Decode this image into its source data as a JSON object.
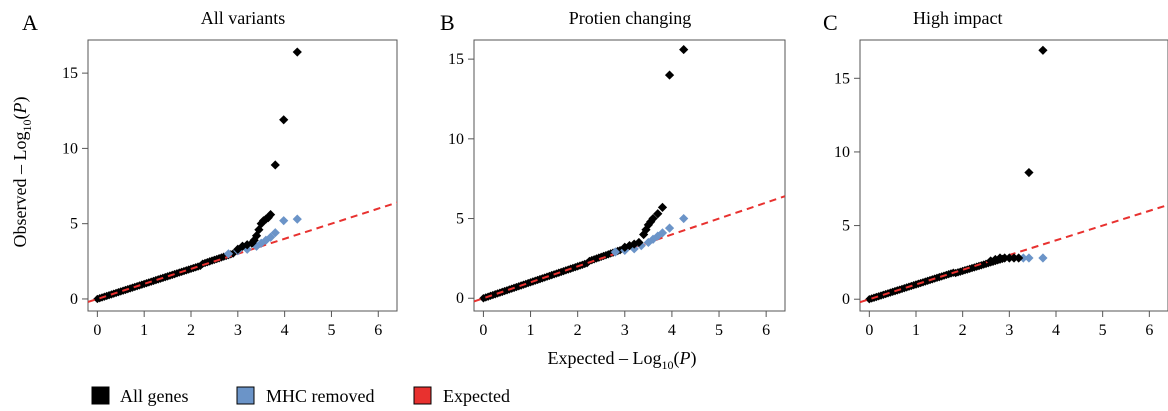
{
  "legend": {
    "items": [
      {
        "label": "All genes",
        "color": "#000000"
      },
      {
        "label": "MHC removed",
        "color": "#6b94c8"
      },
      {
        "label": "Expected",
        "color": "#e8312f"
      }
    ]
  },
  "axes": {
    "ylabel_text": "Observed – Log",
    "ylabel_sub": "10",
    "ylabel_var": "P",
    "xlabel_text": "Expected – Log",
    "xlabel_sub": "10",
    "xlabel_var": "P"
  },
  "chart_data": [
    {
      "type": "scatter",
      "panel": "A",
      "title": "All variants",
      "xlim": [
        -0.2,
        6.4
      ],
      "ylim": [
        -0.8,
        17.2
      ],
      "xticks": [
        0,
        1,
        2,
        3,
        4,
        5,
        6
      ],
      "yticks": [
        0,
        5,
        10,
        15
      ],
      "expected_line": {
        "slope": 1,
        "color": "#e8312f"
      },
      "series": [
        {
          "name": "All genes",
          "color": "#000000",
          "points": [
            [
              3.0,
              3.3
            ],
            [
              3.1,
              3.5
            ],
            [
              3.2,
              3.6
            ],
            [
              3.3,
              3.7
            ],
            [
              3.35,
              3.9
            ],
            [
              3.4,
              4.2
            ],
            [
              3.45,
              4.6
            ],
            [
              3.5,
              5.0
            ],
            [
              3.55,
              5.2
            ],
            [
              3.6,
              5.3
            ],
            [
              3.65,
              5.4
            ],
            [
              3.7,
              5.6
            ],
            [
              3.8,
              8.9
            ],
            [
              3.98,
              11.9
            ],
            [
              4.27,
              16.4
            ]
          ]
        },
        {
          "name": "MHC removed",
          "color": "#6b94c8",
          "points": [
            [
              2.8,
              3.0
            ],
            [
              3.0,
              3.2
            ],
            [
              3.2,
              3.3
            ],
            [
              3.4,
              3.5
            ],
            [
              3.5,
              3.7
            ],
            [
              3.6,
              3.9
            ],
            [
              3.7,
              4.1
            ],
            [
              3.8,
              4.4
            ],
            [
              3.98,
              5.2
            ],
            [
              4.27,
              5.3
            ]
          ]
        }
      ]
    },
    {
      "type": "scatter",
      "panel": "B",
      "title": "Protien changing",
      "xlim": [
        -0.2,
        6.4
      ],
      "ylim": [
        -0.8,
        16.2
      ],
      "xticks": [
        0,
        1,
        2,
        3,
        4,
        5,
        6
      ],
      "yticks": [
        0,
        5,
        10,
        15
      ],
      "expected_line": {
        "slope": 1,
        "color": "#e8312f"
      },
      "series": [
        {
          "name": "All genes",
          "color": "#000000",
          "points": [
            [
              3.0,
              3.2
            ],
            [
              3.1,
              3.3
            ],
            [
              3.2,
              3.4
            ],
            [
              3.3,
              3.5
            ],
            [
              3.4,
              4.0
            ],
            [
              3.45,
              4.3
            ],
            [
              3.5,
              4.6
            ],
            [
              3.55,
              4.8
            ],
            [
              3.6,
              5.0
            ],
            [
              3.7,
              5.3
            ],
            [
              3.8,
              5.7
            ],
            [
              3.95,
              14.0
            ],
            [
              4.25,
              15.6
            ]
          ]
        },
        {
          "name": "MHC removed",
          "color": "#6b94c8",
          "points": [
            [
              2.8,
              2.9
            ],
            [
              3.0,
              3.0
            ],
            [
              3.2,
              3.1
            ],
            [
              3.35,
              3.3
            ],
            [
              3.5,
              3.5
            ],
            [
              3.6,
              3.7
            ],
            [
              3.7,
              3.9
            ],
            [
              3.8,
              4.1
            ],
            [
              3.95,
              4.4
            ],
            [
              4.25,
              5.0
            ]
          ]
        }
      ]
    },
    {
      "type": "scatter",
      "panel": "C",
      "title": "High impact",
      "xlim": [
        -0.2,
        6.4
      ],
      "ylim": [
        -0.8,
        17.6
      ],
      "xticks": [
        0,
        1,
        2,
        3,
        4,
        5,
        6
      ],
      "yticks": [
        0,
        5,
        10,
        15
      ],
      "expected_line": {
        "slope": 1,
        "color": "#e8312f"
      },
      "series": [
        {
          "name": "All genes",
          "color": "#000000",
          "points": [
            [
              2.6,
              2.6
            ],
            [
              2.7,
              2.7
            ],
            [
              2.8,
              2.8
            ],
            [
              2.9,
              2.8
            ],
            [
              3.0,
              2.8
            ],
            [
              3.1,
              2.8
            ],
            [
              3.2,
              2.8
            ],
            [
              3.42,
              8.6
            ],
            [
              3.72,
              16.9
            ]
          ]
        },
        {
          "name": "MHC removed",
          "color": "#6b94c8",
          "points": [
            [
              3.3,
              2.8
            ],
            [
              3.42,
              2.8
            ],
            [
              3.72,
              2.8
            ]
          ]
        }
      ]
    }
  ]
}
